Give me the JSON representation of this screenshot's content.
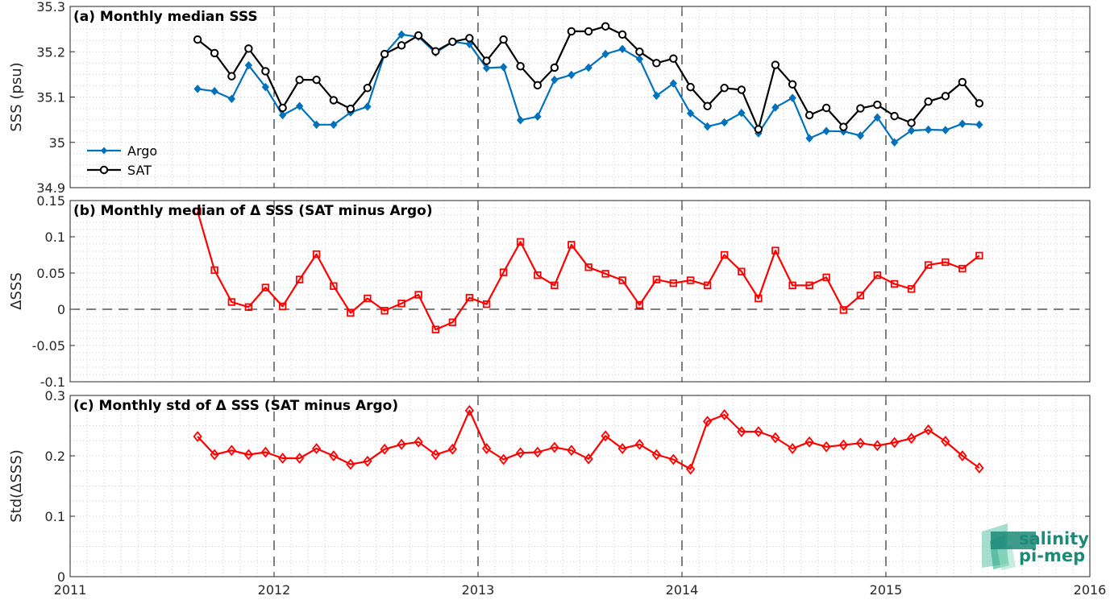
{
  "chart_data": [
    {
      "type": "line",
      "title": "(a) Monthly median SSS",
      "xlabel": "",
      "ylabel": "SSS (psu)",
      "xlim": [
        2011,
        2016
      ],
      "ylim": [
        34.9,
        35.3
      ],
      "x_ticks": [
        "2011",
        "2012",
        "2013",
        "2014",
        "2015",
        "2016"
      ],
      "y_ticks": [
        "34.9",
        "35",
        "35.1",
        "35.2",
        "35.3"
      ],
      "grid": "minor-dotted",
      "legend_position": "bottom-left",
      "x": [
        2011.625,
        2011.708,
        2011.792,
        2011.875,
        2011.958,
        2012.042,
        2012.125,
        2012.208,
        2012.292,
        2012.375,
        2012.458,
        2012.542,
        2012.625,
        2012.708,
        2012.792,
        2012.875,
        2012.958,
        2013.042,
        2013.125,
        2013.208,
        2013.292,
        2013.375,
        2013.458,
        2013.542,
        2013.625,
        2013.708,
        2013.792,
        2013.875,
        2013.958,
        2014.042,
        2014.125,
        2014.208,
        2014.292,
        2014.375,
        2014.458,
        2014.542,
        2014.625,
        2014.708,
        2014.792,
        2014.875,
        2014.958,
        2015.042,
        2015.125,
        2015.208,
        2015.292,
        2015.375,
        2015.458
      ],
      "series": [
        {
          "name": "Argo",
          "color": "#0072bd",
          "marker": "diamond",
          "values": [
            35.118,
            35.113,
            35.096,
            35.17,
            35.122,
            35.06,
            35.08,
            35.039,
            35.039,
            35.066,
            35.079,
            35.195,
            35.238,
            35.233,
            35.198,
            35.222,
            35.217,
            35.164,
            35.166,
            35.049,
            35.057,
            35.138,
            35.149,
            35.165,
            35.195,
            35.206,
            35.184,
            35.103,
            35.13,
            35.064,
            35.035,
            35.044,
            35.065,
            35.02,
            35.077,
            35.098,
            35.009,
            35.025,
            35.024,
            35.015,
            35.055,
            35.0,
            35.026,
            35.028,
            35.027,
            35.041,
            35.039
          ]
        },
        {
          "name": "SAT",
          "color": "#000000",
          "marker": "circle",
          "values": [
            35.227,
            35.197,
            35.146,
            35.207,
            35.157,
            35.076,
            35.138,
            35.138,
            35.093,
            35.074,
            35.12,
            35.195,
            35.214,
            35.236,
            35.201,
            35.222,
            35.23,
            35.18,
            35.227,
            35.168,
            35.126,
            35.165,
            35.245,
            35.245,
            35.256,
            35.238,
            35.2,
            35.175,
            35.185,
            35.122,
            35.08,
            35.12,
            35.116,
            35.029,
            35.171,
            35.128,
            35.06,
            35.076,
            35.034,
            35.075,
            35.083,
            35.058,
            35.043,
            35.09,
            35.102,
            35.133,
            35.086
          ]
        }
      ]
    },
    {
      "type": "line",
      "title": "(b) Monthly median of Δ SSS (SAT minus Argo)",
      "xlabel": "",
      "ylabel": "ΔSSS",
      "xlim": [
        2011,
        2016
      ],
      "ylim": [
        -0.1,
        0.15
      ],
      "x_ticks": [
        "2011",
        "2012",
        "2013",
        "2014",
        "2015",
        "2016"
      ],
      "y_ticks": [
        "-0.1",
        "-0.05",
        "0",
        "0.05",
        "0.1",
        "0.15"
      ],
      "grid": "minor-dotted",
      "zero_line": true,
      "x": [
        2011.625,
        2011.708,
        2011.792,
        2011.875,
        2011.958,
        2012.042,
        2012.125,
        2012.208,
        2012.292,
        2012.375,
        2012.458,
        2012.542,
        2012.625,
        2012.708,
        2012.792,
        2012.875,
        2012.958,
        2013.042,
        2013.125,
        2013.208,
        2013.292,
        2013.375,
        2013.458,
        2013.542,
        2013.625,
        2013.708,
        2013.792,
        2013.875,
        2013.958,
        2014.042,
        2014.125,
        2014.208,
        2014.292,
        2014.375,
        2014.458,
        2014.542,
        2014.625,
        2014.708,
        2014.792,
        2014.875,
        2014.958,
        2015.042,
        2015.125,
        2015.208,
        2015.292,
        2015.375,
        2015.458
      ],
      "series": [
        {
          "color": "#ff0000",
          "marker": "square",
          "values": [
            0.135,
            0.054,
            0.01,
            0.003,
            0.03,
            0.004,
            0.041,
            0.076,
            0.032,
            -0.005,
            0.015,
            -0.002,
            0.008,
            0.02,
            -0.028,
            -0.018,
            0.016,
            0.007,
            0.051,
            0.093,
            0.047,
            0.033,
            0.089,
            0.058,
            0.049,
            0.04,
            0.006,
            0.041,
            0.036,
            0.04,
            0.033,
            0.075,
            0.052,
            0.015,
            0.081,
            0.033,
            0.033,
            0.044,
            -0.001,
            0.019,
            0.047,
            0.035,
            0.028,
            0.061,
            0.065,
            0.056,
            0.074
          ]
        }
      ]
    },
    {
      "type": "line",
      "title": "(c) Monthly std of Δ SSS (SAT minus Argo)",
      "xlabel": "",
      "ylabel": "Std(ΔSSS)",
      "xlim": [
        2011,
        2016
      ],
      "ylim": [
        0,
        0.3
      ],
      "x_ticks": [
        "2011",
        "2012",
        "2013",
        "2014",
        "2015",
        "2016"
      ],
      "y_ticks": [
        "0",
        "0.1",
        "0.2",
        "0.3"
      ],
      "grid": "minor-dotted",
      "x": [
        2011.625,
        2011.708,
        2011.792,
        2011.875,
        2011.958,
        2012.042,
        2012.125,
        2012.208,
        2012.292,
        2012.375,
        2012.458,
        2012.542,
        2012.625,
        2012.708,
        2012.792,
        2012.875,
        2012.958,
        2013.042,
        2013.125,
        2013.208,
        2013.292,
        2013.375,
        2013.458,
        2013.542,
        2013.625,
        2013.708,
        2013.792,
        2013.875,
        2013.958,
        2014.042,
        2014.125,
        2014.208,
        2014.292,
        2014.375,
        2014.458,
        2014.542,
        2014.625,
        2014.708,
        2014.792,
        2014.875,
        2014.958,
        2015.042,
        2015.125,
        2015.208,
        2015.292,
        2015.375,
        2015.458
      ],
      "series": [
        {
          "color": "#ff0000",
          "marker": "diamond-open",
          "values": [
            0.232,
            0.202,
            0.209,
            0.202,
            0.206,
            0.196,
            0.196,
            0.212,
            0.2,
            0.186,
            0.191,
            0.211,
            0.219,
            0.223,
            0.202,
            0.211,
            0.275,
            0.212,
            0.194,
            0.205,
            0.206,
            0.214,
            0.209,
            0.195,
            0.233,
            0.212,
            0.219,
            0.202,
            0.194,
            0.178,
            0.257,
            0.268,
            0.24,
            0.24,
            0.23,
            0.212,
            0.223,
            0.215,
            0.218,
            0.221,
            0.217,
            0.222,
            0.229,
            0.243,
            0.224,
            0.2,
            0.18
          ]
        }
      ]
    }
  ],
  "logo": {
    "line1": "salinity",
    "line2": "pi-mep",
    "color": "#1d8a78"
  }
}
